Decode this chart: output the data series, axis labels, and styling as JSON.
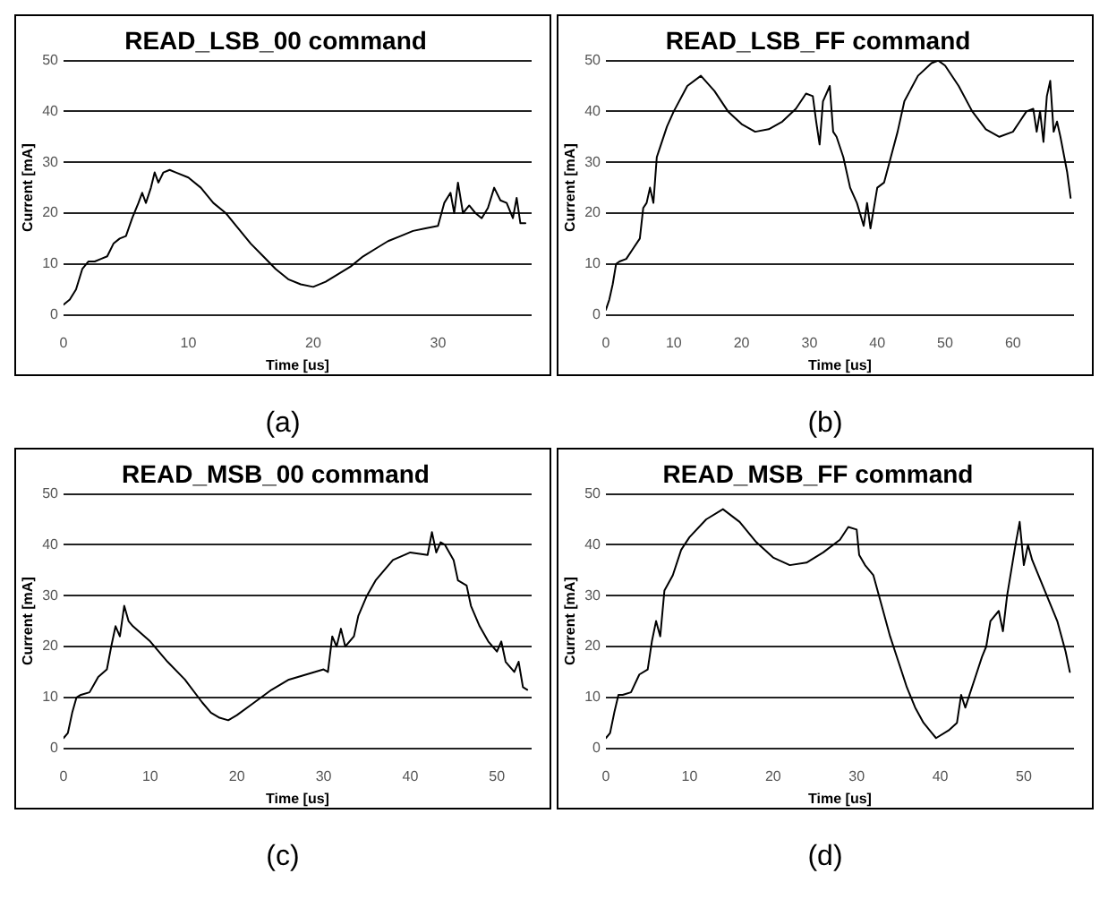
{
  "chart_data": [
    {
      "type": "line",
      "title": "READ_LSB_00 command",
      "xlabel": "Time [us]",
      "ylabel": "Current [mA]",
      "annotations": [
        "(a)"
      ],
      "xlim": [
        0,
        37.5
      ],
      "xticks": [
        0,
        10,
        20,
        30
      ],
      "ylim": [
        0,
        50
      ],
      "yticks": [
        0,
        10,
        20,
        30,
        40,
        50
      ],
      "grid": "y",
      "legend": false,
      "marker": "none",
      "series": [
        {
          "color": "#000000",
          "x": [
            0,
            0.5,
            1,
            1.5,
            2,
            2.5,
            3,
            3.5,
            4,
            4.5,
            5,
            5.5,
            6,
            6.3,
            6.6,
            7,
            7.3,
            7.6,
            8,
            8.5,
            9,
            10,
            11,
            12,
            13,
            14,
            15,
            16,
            17,
            18,
            19,
            20,
            21,
            22,
            23,
            24,
            25,
            26,
            27,
            28,
            29,
            30,
            30.5,
            31,
            31.3,
            31.6,
            32,
            32.5,
            33,
            33.5,
            34,
            34.5,
            35,
            35.5,
            36,
            36.3,
            36.6,
            37
          ],
          "values": [
            2,
            3,
            5,
            9,
            10.5,
            10.5,
            11,
            11.5,
            14,
            15,
            15.5,
            19,
            22,
            24,
            22,
            25,
            28,
            26,
            28,
            28.5,
            28,
            27,
            25,
            22,
            20,
            17,
            14,
            11.5,
            9,
            7,
            6,
            5.5,
            6.5,
            8,
            9.5,
            11.5,
            13,
            14.5,
            15.5,
            16.5,
            17,
            17.5,
            22,
            24,
            20,
            26,
            20,
            21.5,
            20,
            19,
            21,
            25,
            22.5,
            22,
            19,
            23,
            18,
            18
          ]
        }
      ]
    },
    {
      "type": "line",
      "title": "READ_LSB_FF command",
      "xlabel": "Time [us]",
      "ylabel": "Current [mA]",
      "annotations": [
        "(b)"
      ],
      "xlim": [
        0,
        69
      ],
      "xticks": [
        0,
        10,
        20,
        30,
        40,
        50,
        60
      ],
      "ylim": [
        0,
        50
      ],
      "yticks": [
        0,
        10,
        20,
        30,
        40,
        50
      ],
      "grid": "y",
      "legend": false,
      "marker": "none",
      "series": [
        {
          "color": "#000000",
          "x": [
            0,
            0.5,
            1,
            1.5,
            2,
            3,
            4,
            5,
            5.5,
            6,
            6.5,
            7,
            7.5,
            8,
            9,
            10,
            12,
            14,
            16,
            18,
            20,
            22,
            24,
            26,
            28,
            29.5,
            30.5,
            31,
            31.5,
            32,
            33,
            33.5,
            34,
            35,
            36,
            37,
            38,
            38.5,
            39,
            39.5,
            40,
            41,
            42,
            43,
            44,
            46,
            48,
            49,
            50,
            52,
            54,
            56,
            58,
            60,
            61,
            62,
            63,
            63.5,
            64,
            64.5,
            65,
            65.5,
            66,
            66.5,
            67,
            68,
            68.5
          ],
          "values": [
            1,
            3,
            6,
            10,
            10.5,
            11,
            13,
            15,
            21,
            22,
            25,
            22,
            31,
            33,
            37,
            40,
            45,
            47,
            44,
            40,
            37.5,
            36,
            36.5,
            38,
            40.5,
            43.5,
            43,
            38,
            33.5,
            42,
            45,
            36,
            35,
            31,
            25,
            22,
            17.5,
            22,
            17,
            21,
            25,
            26,
            31,
            36,
            42,
            47,
            49.5,
            50,
            49,
            45,
            40,
            36.5,
            35,
            36,
            38,
            40,
            40.5,
            36,
            40,
            34,
            43,
            46,
            36,
            38,
            35,
            28,
            23
          ]
        }
      ]
    },
    {
      "type": "line",
      "title": "READ_MSB_00 command",
      "xlabel": "Time [us]",
      "ylabel": "Current [mA]",
      "annotations": [
        "(c)"
      ],
      "xlim": [
        0,
        54
      ],
      "xticks": [
        0,
        10,
        20,
        30,
        40,
        50
      ],
      "ylim": [
        0,
        50
      ],
      "yticks": [
        0,
        10,
        20,
        30,
        40,
        50
      ],
      "grid": "y",
      "legend": false,
      "marker": "none",
      "series": [
        {
          "color": "#000000",
          "x": [
            0,
            0.5,
            1,
            1.5,
            2,
            3,
            4,
            5,
            5.5,
            6,
            6.5,
            7,
            7.5,
            8,
            10,
            12,
            14,
            16,
            17,
            18,
            19,
            20,
            22,
            24,
            26,
            28,
            30,
            30.5,
            31,
            31.5,
            32,
            32.5,
            33.5,
            34,
            35,
            36,
            38,
            40,
            42,
            42.5,
            43,
            43.5,
            44,
            45,
            45.5,
            46.5,
            47,
            48,
            49,
            50,
            50.5,
            51,
            52,
            52.5,
            53,
            53.5
          ],
          "values": [
            2,
            3,
            7,
            10,
            10.5,
            11,
            14,
            15.5,
            20,
            24,
            22,
            28,
            25,
            24,
            21,
            17,
            13.5,
            9,
            7,
            6,
            5.5,
            6.5,
            9,
            11.5,
            13.5,
            14.5,
            15.5,
            15,
            22,
            20,
            23.5,
            20,
            22,
            26,
            30,
            33,
            37,
            38.5,
            38,
            42.5,
            38.5,
            40.5,
            40,
            37,
            33,
            32,
            28,
            24,
            21,
            19,
            21,
            17,
            15,
            17,
            12,
            11.5
          ]
        }
      ]
    },
    {
      "type": "line",
      "title": "READ_MSB_FF command",
      "xlabel": "Time [us]",
      "ylabel": "Current [mA]",
      "annotations": [
        "(d)"
      ],
      "xlim": [
        0,
        56
      ],
      "xticks": [
        0,
        10,
        20,
        30,
        40,
        50
      ],
      "ylim": [
        0,
        50
      ],
      "yticks": [
        0,
        10,
        20,
        30,
        40,
        50
      ],
      "grid": "y",
      "legend": false,
      "marker": "none",
      "series": [
        {
          "color": "#000000",
          "x": [
            0,
            0.5,
            1,
            1.5,
            2,
            3,
            4,
            5,
            5.5,
            6,
            6.5,
            7,
            8,
            9,
            10,
            12,
            14,
            16,
            18,
            20,
            22,
            24,
            26,
            28,
            29,
            30,
            30.3,
            31,
            32,
            33,
            34,
            35,
            36,
            37,
            38,
            39,
            39.5,
            41,
            42,
            42.5,
            43,
            44,
            45,
            45.5,
            46,
            47,
            47.5,
            48,
            49,
            49.5,
            50,
            50.5,
            51,
            52,
            53,
            54,
            55,
            55.5
          ],
          "values": [
            2,
            3,
            7,
            10.5,
            10.5,
            11,
            14.5,
            15.5,
            21,
            25,
            22,
            31,
            34,
            39,
            41.5,
            45,
            47,
            44.5,
            40.5,
            37.5,
            36,
            36.5,
            38.5,
            41,
            43.5,
            43,
            38,
            36,
            34,
            28,
            22,
            17,
            12,
            8,
            5,
            3,
            2,
            3.5,
            5,
            10.5,
            8,
            13,
            18,
            20,
            25,
            27,
            23,
            30,
            40,
            44.5,
            36,
            40,
            37,
            33,
            29,
            25,
            19,
            15
          ]
        }
      ]
    }
  ]
}
